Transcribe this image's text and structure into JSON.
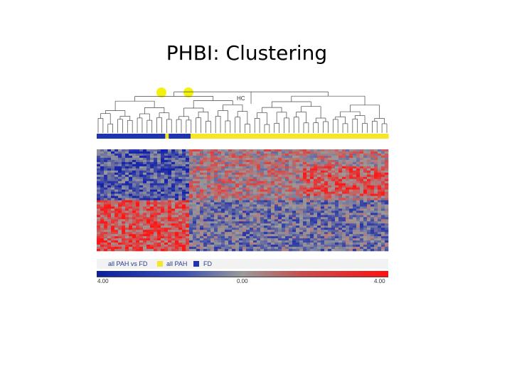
{
  "slide": {
    "title": "PHBI: Clustering"
  },
  "dendrogram": {
    "label": "HC"
  },
  "legend": {
    "items": [
      {
        "label": "all PAH vs FD",
        "color": ""
      },
      {
        "label": "all PAH",
        "color": "#f5e626"
      },
      {
        "label": "FD",
        "color": "#1f35b0"
      }
    ]
  },
  "color_scale": {
    "min_label": "4.00",
    "mid_label": "0.00",
    "max_label": "4.00",
    "low_color": "#0c1fa0",
    "mid_color": "#9a9a9a",
    "high_color": "#ff1010"
  },
  "markers": {
    "color": "#f2f20a",
    "count": 2
  },
  "group_bar": {
    "segments": [
      {
        "group": "FD",
        "fraction": 0.235
      },
      {
        "group": "all PAH",
        "fraction": 0.012
      },
      {
        "group": "FD",
        "fraction": 0.075
      },
      {
        "group": "all PAH",
        "fraction": 0.678
      }
    ]
  }
}
